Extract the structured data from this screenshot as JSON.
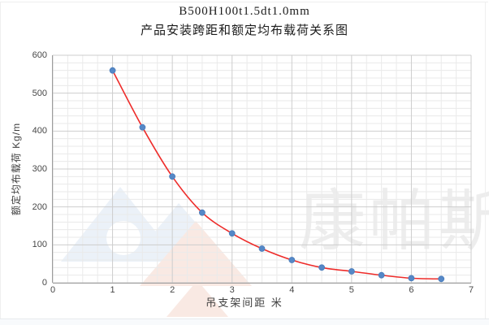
{
  "figure": {
    "title_line1": "B500H100t1.5dt1.0mm",
    "title_line2": "产品安装跨距和额定均布载荷关系图"
  },
  "watermark": {
    "text": "康帕斯"
  },
  "chart_data": {
    "type": "scatter",
    "title": "B500H100t1.5dt1.0mm 产品安装跨距和额定均布载荷关系图",
    "xlabel": "吊支架间距  米",
    "ylabel": "额定均布载荷 Kg/m",
    "x": [
      1,
      1.5,
      2,
      2.5,
      3,
      3.5,
      4,
      4.5,
      5,
      5.5,
      6,
      6.5
    ],
    "y": [
      560,
      410,
      280,
      185,
      130,
      90,
      60,
      40,
      30,
      20,
      12,
      10
    ],
    "fit_curve": "smooth red trendline through all points",
    "xlim": [
      0,
      7
    ],
    "ylim": [
      0,
      600
    ],
    "x_ticks": [
      0,
      1,
      2,
      3,
      4,
      5,
      6,
      7
    ],
    "y_ticks": [
      0,
      100,
      200,
      300,
      400,
      500,
      600
    ],
    "x_minor_step": 0.25,
    "y_minor_step": 20,
    "grid": "major and minor gridlines, light gray",
    "legend": "none",
    "colors": {
      "marker": "#5588c7",
      "marker_edge": "#4a7cba",
      "curve": "#ee2c2a",
      "grid_major": "#cdcdcd",
      "grid_minor": "#eaeaea",
      "axis_line": "#9c9c9c",
      "watermark_text": "#ededed",
      "watermark_logo_blue": "#ebf1f8",
      "watermark_logo_peach": "#f9e9e3"
    }
  }
}
